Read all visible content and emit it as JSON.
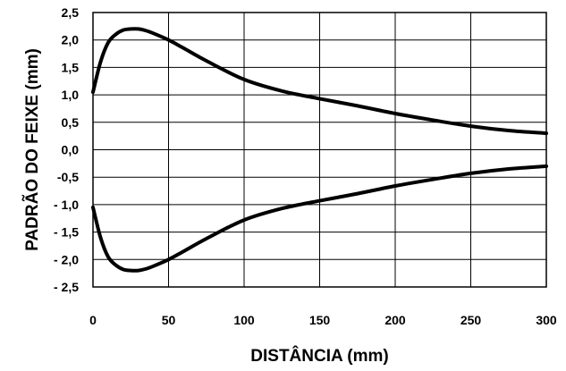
{
  "chart_data": {
    "type": "line",
    "title": "",
    "xlabel": "DISTÂNCIA (mm)",
    "ylabel": "PADRÃO DO FEIXE (mm)",
    "xlim": [
      0,
      300
    ],
    "ylim": [
      -2.5,
      2.5
    ],
    "x_ticks": [
      0,
      50,
      100,
      150,
      200,
      250,
      300
    ],
    "x_tick_labels": [
      "0",
      "50",
      "100",
      "150",
      "200",
      "250",
      "300"
    ],
    "y_ticks": [
      2.5,
      2.0,
      1.5,
      1.0,
      0.5,
      0.0,
      -0.5,
      -1.0,
      -1.5,
      -2.0,
      -2.5
    ],
    "y_tick_labels": [
      "2,5",
      "2,0",
      "1,5",
      "1,0",
      "0,5",
      "0,0",
      "-0,5",
      "- 1,0",
      "- 1,5",
      "- 2,0",
      "- 2,5"
    ],
    "grid": true,
    "line_color": "#000000",
    "series": [
      {
        "x": [
          0,
          5,
          10,
          15,
          20,
          25,
          30,
          35,
          40,
          50,
          60,
          75,
          100,
          125,
          150,
          175,
          200,
          225,
          250,
          275,
          300
        ],
        "values": [
          1.05,
          1.6,
          1.95,
          2.1,
          2.18,
          2.2,
          2.2,
          2.17,
          2.12,
          2.0,
          1.85,
          1.62,
          1.28,
          1.07,
          0.93,
          0.8,
          0.66,
          0.54,
          0.43,
          0.35,
          0.3
        ]
      },
      {
        "x": [
          0,
          5,
          10,
          15,
          20,
          25,
          30,
          35,
          40,
          50,
          60,
          75,
          100,
          125,
          150,
          175,
          200,
          225,
          250,
          275,
          300
        ],
        "values": [
          -1.05,
          -1.6,
          -1.95,
          -2.1,
          -2.18,
          -2.2,
          -2.2,
          -2.17,
          -2.12,
          -2.0,
          -1.85,
          -1.62,
          -1.28,
          -1.07,
          -0.93,
          -0.8,
          -0.66,
          -0.54,
          -0.43,
          -0.35,
          -0.3
        ]
      }
    ]
  }
}
